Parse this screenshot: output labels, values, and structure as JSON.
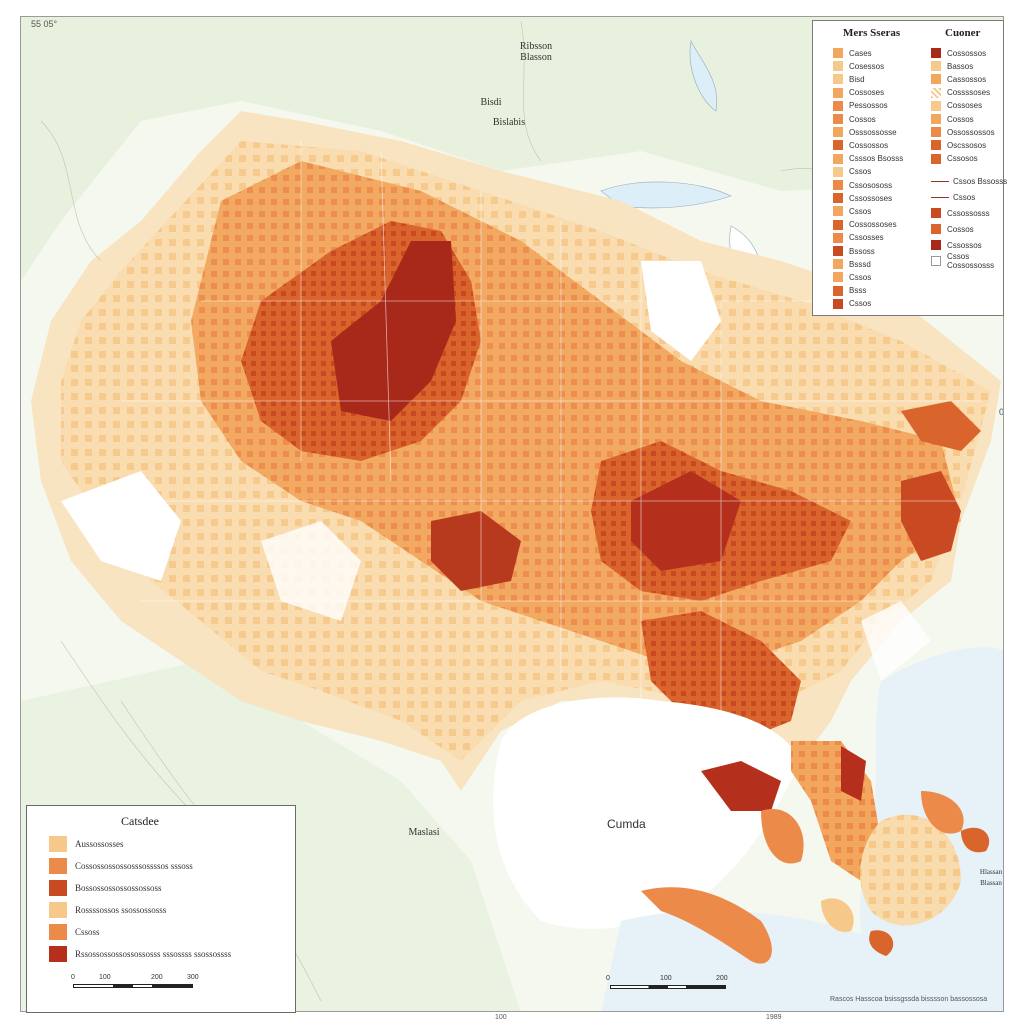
{
  "map": {
    "corner_top_left": "55 05°",
    "edge_left": "0",
    "edge_right": "0",
    "bottom_center_tick": "100",
    "bottom_right_tick": "1989",
    "place_labels": [
      {
        "id": "north-a",
        "text": "Ribsson\nBlasson"
      },
      {
        "id": "north-b",
        "text": "Bisdi"
      },
      {
        "id": "north-c",
        "text": "Bislabis"
      },
      {
        "id": "west-coast",
        "text": "Maslasi"
      },
      {
        "id": "caribbean-note",
        "text": "Hlassan\nBlassan"
      }
    ],
    "sea_label": "Cumda",
    "bottom_scale": {
      "labels": [
        "0",
        "100",
        "200"
      ]
    },
    "footer": "Rascos    Hasscoa bsissgssda bisssson bassossosa"
  },
  "legend_top": {
    "title_left": "Mers Sseras",
    "title_right": "Cuoner",
    "left_items": [
      {
        "label": "Cases",
        "color": "#f2a65e"
      },
      {
        "label": "Cosessos",
        "color": "#f6c98a"
      },
      {
        "label": "Bisd",
        "color": "#f6c98a"
      },
      {
        "label": "Cossoses",
        "color": "#f2a65e"
      },
      {
        "label": "Pessossos",
        "color": "#ec8a4a"
      },
      {
        "label": "Cossos",
        "color": "#ec8a4a"
      },
      {
        "label": "Osssossosse",
        "color": "#f2a65e"
      },
      {
        "label": "Cossossos",
        "color": "#d9642c"
      },
      {
        "label": "Csssos Bsosss",
        "color": "#f2a65e"
      },
      {
        "label": "Cssos",
        "color": "#f6c98a"
      },
      {
        "label": "Cssosososs",
        "color": "#ec8a4a"
      },
      {
        "label": "Cssossoses",
        "color": "#d9642c"
      },
      {
        "label": "Cssos",
        "color": "#f2a65e"
      },
      {
        "label": "Cossossoses",
        "color": "#d9642c"
      },
      {
        "label": "Cssosses",
        "color": "#ec8a4a"
      },
      {
        "label": "Bssoss",
        "color": "#c94a22"
      },
      {
        "label": "Bsssd",
        "color": "#f2a65e"
      },
      {
        "label": "Cssos",
        "color": "#f2a65e"
      },
      {
        "label": "Bsss",
        "color": "#d9642c"
      },
      {
        "label": "Cssos",
        "color": "#c94a22"
      }
    ],
    "right_items": [
      {
        "label": "Cossossos",
        "color": "#a8281a"
      },
      {
        "label": "Bassos",
        "color": "#f6c98a"
      },
      {
        "label": "Cassossos",
        "color": "#f2a65e"
      },
      {
        "label": "Cossssoses",
        "color": "#f6c98a",
        "type": "hatch"
      },
      {
        "label": "Cossoses",
        "color": "#f6c98a"
      },
      {
        "label": "Cossos",
        "color": "#f2a65e"
      },
      {
        "label": "Ossossossos",
        "color": "#ec8a4a"
      },
      {
        "label": "Oscssosos",
        "color": "#d9642c"
      },
      {
        "label": "Cssosos",
        "color": "#d9642c"
      }
    ],
    "right_lower": [
      {
        "label": "Cssos Bssosss",
        "type": "line"
      },
      {
        "label": "Cssos",
        "type": "line"
      },
      {
        "label": "Cssossosss",
        "color": "#c94a22"
      },
      {
        "label": "Cossos",
        "color": "#d9642c"
      },
      {
        "label": "Cssossos",
        "color": "#a8281a"
      },
      {
        "label": "Cssos\nCossossosss",
        "color": "#ffffff",
        "type": "dot"
      }
    ]
  },
  "legend_bottom": {
    "title": "Catsdee",
    "items": [
      {
        "label": "Aussossosses",
        "color": "#f6c98a"
      },
      {
        "label": "Cossossossossosssossssos sssoss",
        "color": "#ec8a4a"
      },
      {
        "label": "Bossossossossossossoss",
        "color": "#c94a22"
      },
      {
        "label": "Rossssossos ssossossosss",
        "color": "#f6c98a"
      },
      {
        "label": "Cssoss",
        "color": "#ec8a4a"
      },
      {
        "label": "Rssossossossossossosss sssossss ssossossss",
        "color": "#b5301c"
      }
    ],
    "scale_labels": [
      "0",
      "100",
      "200",
      "300"
    ]
  },
  "colors": {
    "land": "#f4f8ef",
    "land_green": "#e3efd8",
    "water": "#ffffff",
    "lake": "#dceef8",
    "c1": "#f9dcae",
    "c2": "#f6c98a",
    "c3": "#f2a65e",
    "c4": "#ec8a4a",
    "c5": "#d9642c",
    "c6": "#c94a22",
    "c7": "#a8281a"
  }
}
